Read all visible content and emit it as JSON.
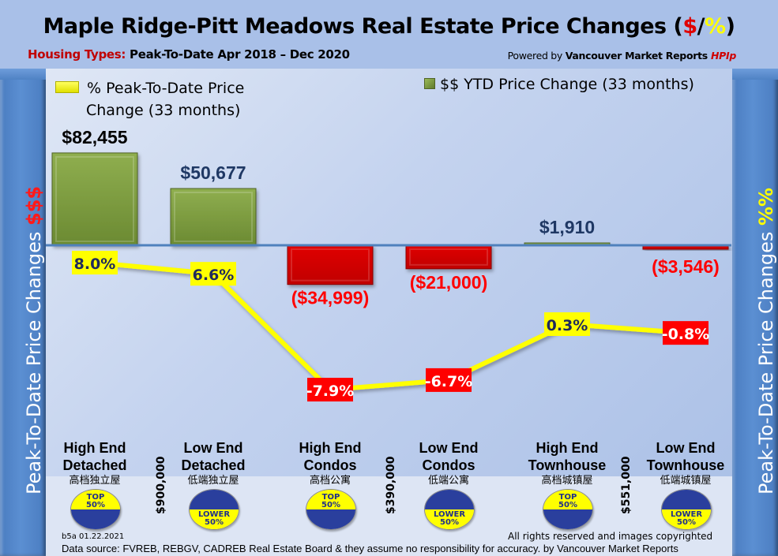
{
  "header": {
    "title_main": "Maple Ridge-Pitt Meadows Real Estate Price Changes (",
    "title_dollar": "$",
    "title_slash": "/",
    "title_pct": "%",
    "title_close": ")",
    "subtitle_label": "Housing Types:",
    "subtitle_text": " Peak-To-Date Apr 2018 – Dec 2020",
    "powered_prefix": "Powered by ",
    "powered_brand": "Vancouver Market Reports ",
    "powered_hpi": "HPIp"
  },
  "side": {
    "left_text": "Peak-To-Date Price Changes ",
    "left_accent": "$$$",
    "right_text": "Peak-To-Date  Price  Changes  ",
    "right_accent": "%%"
  },
  "legend": {
    "pct_line1": "% Peak-To-Date Price",
    "pct_line2": "Change (33 months)",
    "dollar": "$$ YTD Price Change (33 months)"
  },
  "colors": {
    "bar_positive": "#76923c",
    "bar_negative": "#d40000",
    "line": "#ffff00",
    "label_positive_bg": "#ffff00",
    "label_negative_bg": "#ff0000",
    "baseline": "#4f81bd"
  },
  "chart_data": {
    "type": "bar",
    "title": "Maple Ridge-Pitt Meadows Real Estate Price Changes ($/%)",
    "xlabel": "",
    "ylabel": "Peak-To-Date Price Changes $$$",
    "y2label": "Peak-To-Date Price Changes %%",
    "grid": false,
    "legend_position": "top",
    "categories": [
      "High End Detached",
      "Low End Detached",
      "High End Condos",
      "Low End Condos",
      "High End Townhouse",
      "Low End Townhouse"
    ],
    "series": [
      {
        "name": "$$ YTD Price Change (33 months)",
        "type": "bar",
        "values": [
          82455,
          50677,
          -34999,
          -21000,
          1910,
          -3546
        ],
        "labels": [
          "$82,455",
          "$50,677",
          "($34,999)",
          "($21,000)",
          "$1,910",
          "($3,546)"
        ]
      },
      {
        "name": "% Peak-To-Date Price Change (33 months)",
        "type": "line",
        "values": [
          8.0,
          6.6,
          -7.9,
          -6.7,
          0.3,
          -0.8
        ],
        "labels": [
          "8.0%",
          "6.6%",
          "-7.9%",
          "-6.7%",
          "0.3%",
          "-0.8%"
        ]
      }
    ]
  },
  "categories": [
    {
      "line1": "High End",
      "line2": "Detached",
      "zh": "高档独立屋",
      "badge_word": "TOP",
      "badge_pct": "50%",
      "tier": "top"
    },
    {
      "line1": "Low End",
      "line2": "Detached",
      "zh": "低端独立屋",
      "badge_word": "LOWER",
      "badge_pct": "50%",
      "tier": "lower"
    },
    {
      "line1": "High End",
      "line2": "Condos",
      "zh": "高档公寓",
      "badge_word": "TOP",
      "badge_pct": "50%",
      "tier": "top"
    },
    {
      "line1": "Low End",
      "line2": "Condos",
      "zh": "低端公寓",
      "badge_word": "LOWER",
      "badge_pct": "50%",
      "tier": "lower"
    },
    {
      "line1": "High End",
      "line2": "Townhouse",
      "zh": "高档城镇屋",
      "badge_word": "TOP",
      "badge_pct": "50%",
      "tier": "top"
    },
    {
      "line1": "Low End",
      "line2": "Townhouse",
      "zh": "低端城镇屋",
      "badge_word": "LOWER",
      "badge_pct": "50%",
      "tier": "lower"
    }
  ],
  "thresholds": [
    "$900,000",
    "$390,000",
    "$551,000"
  ],
  "footer": {
    "code": "b5a 01.22.2021",
    "copyright": "All rights reserved and  images copyrighted",
    "source": "Data source: FVREB, REBGV, CADREB Real Estate Board & they assume no responsibility for accuracy. by Vancouver Market Reports"
  }
}
